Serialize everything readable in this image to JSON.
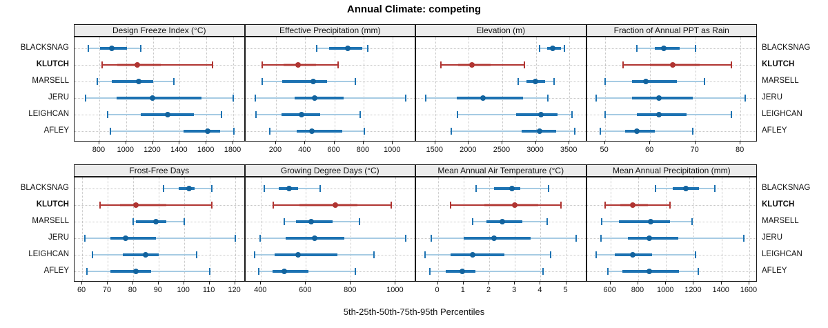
{
  "title": "Annual Climate: competing",
  "caption": "5th-25th-50th-75th-95th Percentiles",
  "sites": [
    "BLACKSNAG",
    "KLUTCH",
    "MARSELL",
    "JERU",
    "LEIGHCAN",
    "AFLEY"
  ],
  "highlight_site": "KLUTCH",
  "colors": {
    "blue_strong": "#1c72b2",
    "blue_light": "#a6cbe3",
    "blue_dot": "#12639e",
    "red_strong": "#b03431",
    "red_light_alpha": "rgba(176,52,47,0.42)",
    "strip_bg": "#ececec",
    "grid": "#c6c6c6",
    "panel_border": "#1a1a1a"
  },
  "percentile_order": [
    "5th",
    "25th",
    "50th",
    "75th",
    "95th"
  ],
  "chart_data": [
    {
      "type": "percentile-interval",
      "title": "Design Freeze Index (°C)",
      "row": 0,
      "col": 0,
      "xlim": [
        615,
        1880
      ],
      "ticks": [
        800,
        1000,
        1200,
        1400,
        1600,
        1800
      ],
      "series": [
        {
          "site": "BLACKSNAG",
          "values": [
            720,
            805,
            895,
            1005,
            1110
          ]
        },
        {
          "site": "KLUTCH",
          "values": [
            820,
            935,
            1085,
            1260,
            1645
          ]
        },
        {
          "site": "MARSELL",
          "values": [
            785,
            895,
            1095,
            1205,
            1355
          ]
        },
        {
          "site": "JERU",
          "values": [
            700,
            930,
            1195,
            1565,
            1800
          ]
        },
        {
          "site": "LEIGHCAN",
          "values": [
            860,
            1110,
            1310,
            1505,
            1715
          ]
        },
        {
          "site": "AFLEY",
          "values": [
            885,
            1430,
            1610,
            1700,
            1805
          ]
        }
      ]
    },
    {
      "type": "percentile-interval",
      "title": "Effective Precipitation (mm)",
      "row": 0,
      "col": 1,
      "xlim": [
        -10,
        1150
      ],
      "ticks": [
        200,
        400,
        600,
        800,
        1000
      ],
      "series": [
        {
          "site": "BLACKSNAG",
          "values": [
            480,
            565,
            690,
            790,
            830
          ]
        },
        {
          "site": "KLUTCH",
          "values": [
            105,
            250,
            350,
            475,
            625
          ]
        },
        {
          "site": "MARSELL",
          "values": [
            105,
            245,
            455,
            550,
            745
          ]
        },
        {
          "site": "JERU",
          "values": [
            60,
            330,
            465,
            665,
            1090
          ]
        },
        {
          "site": "LEIGHCAN",
          "values": [
            65,
            240,
            375,
            505,
            775
          ]
        },
        {
          "site": "AFLEY",
          "values": [
            160,
            340,
            445,
            655,
            805
          ]
        }
      ]
    },
    {
      "type": "percentile-interval",
      "title": "Elevation (m)",
      "row": 0,
      "col": 2,
      "xlim": [
        1215,
        3740
      ],
      "ticks": [
        1500,
        2000,
        2500,
        3000,
        3500
      ],
      "series": [
        {
          "site": "BLACKSNAG",
          "values": [
            3060,
            3170,
            3250,
            3370,
            3430
          ]
        },
        {
          "site": "KLUTCH",
          "values": [
            1590,
            1840,
            2050,
            2330,
            2830
          ]
        },
        {
          "site": "MARSELL",
          "values": [
            2740,
            2860,
            2990,
            3140,
            3270
          ]
        },
        {
          "site": "JERU",
          "values": [
            1360,
            1820,
            2215,
            2810,
            3180
          ]
        },
        {
          "site": "LEIGHCAN",
          "values": [
            1830,
            2710,
            3080,
            3320,
            3540
          ]
        },
        {
          "site": "AFLEY",
          "values": [
            1740,
            2790,
            3060,
            3300,
            3580
          ]
        }
      ]
    },
    {
      "type": "percentile-interval",
      "title": "Fraction of Annual PPT as Rain",
      "row": 0,
      "col": 3,
      "xlim": [
        46,
        83.5
      ],
      "ticks": [
        50,
        60,
        70,
        80
      ],
      "series": [
        {
          "site": "BLACKSNAG",
          "values": [
            57,
            61,
            63,
            66.5,
            70
          ]
        },
        {
          "site": "KLUTCH",
          "values": [
            54,
            60,
            65,
            71,
            78
          ]
        },
        {
          "site": "MARSELL",
          "values": [
            50,
            56,
            59,
            66,
            72
          ]
        },
        {
          "site": "JERU",
          "values": [
            48,
            56,
            62,
            69.5,
            81
          ]
        },
        {
          "site": "LEIGHCAN",
          "values": [
            50,
            57,
            62,
            68,
            78
          ]
        },
        {
          "site": "AFLEY",
          "values": [
            49,
            54.5,
            57,
            61,
            69.5
          ]
        }
      ]
    },
    {
      "type": "percentile-interval",
      "title": "Frost-Free Days",
      "row": 1,
      "col": 0,
      "xlim": [
        57,
        123.5
      ],
      "ticks": [
        60,
        70,
        80,
        90,
        100,
        110,
        120
      ],
      "series": [
        {
          "site": "BLACKSNAG",
          "values": [
            92,
            98,
            102,
            104,
            111
          ]
        },
        {
          "site": "KLUTCH",
          "values": [
            67,
            75,
            81,
            93,
            111
          ]
        },
        {
          "site": "MARSELL",
          "values": [
            80,
            81,
            89,
            93,
            100
          ]
        },
        {
          "site": "JERU",
          "values": [
            61,
            71,
            77,
            89,
            120
          ]
        },
        {
          "site": "LEIGHCAN",
          "values": [
            64,
            76,
            85,
            90,
            105
          ]
        },
        {
          "site": "AFLEY",
          "values": [
            62,
            71,
            81,
            87,
            110
          ]
        }
      ]
    },
    {
      "type": "percentile-interval",
      "title": "Growing Degree Days (°C)",
      "row": 1,
      "col": 1,
      "xlim": [
        330,
        1085
      ],
      "ticks": [
        400,
        600,
        800,
        1000
      ],
      "series": [
        {
          "site": "BLACKSNAG",
          "values": [
            415,
            480,
            525,
            565,
            665
          ]
        },
        {
          "site": "KLUTCH",
          "values": [
            455,
            570,
            730,
            830,
            980
          ]
        },
        {
          "site": "MARSELL",
          "values": [
            505,
            555,
            625,
            720,
            840
          ]
        },
        {
          "site": "JERU",
          "values": [
            395,
            510,
            640,
            770,
            1045
          ]
        },
        {
          "site": "LEIGHCAN",
          "values": [
            370,
            460,
            565,
            740,
            905
          ]
        },
        {
          "site": "AFLEY",
          "values": [
            390,
            450,
            505,
            610,
            820
          ]
        }
      ]
    },
    {
      "type": "percentile-interval",
      "title": "Mean Annual Air Temperature (°C)",
      "row": 1,
      "col": 2,
      "xlim": [
        -0.85,
        5.75
      ],
      "ticks": [
        0,
        1,
        2,
        3,
        4,
        5
      ],
      "series": [
        {
          "site": "BLACKSNAG",
          "values": [
            1.5,
            2.2,
            2.9,
            3.2,
            4.3
          ]
        },
        {
          "site": "KLUTCH",
          "values": [
            0.5,
            1.8,
            3.0,
            3.9,
            4.8
          ]
        },
        {
          "site": "MARSELL",
          "values": [
            1.35,
            1.9,
            2.5,
            3.3,
            4.25
          ]
        },
        {
          "site": "JERU",
          "values": [
            -0.25,
            1.0,
            2.2,
            3.6,
            5.4
          ]
        },
        {
          "site": "LEIGHCAN",
          "values": [
            -0.5,
            0.5,
            1.35,
            2.6,
            4.4
          ]
        },
        {
          "site": "AFLEY",
          "values": [
            -0.3,
            0.3,
            0.95,
            1.45,
            4.1
          ]
        }
      ]
    },
    {
      "type": "percentile-interval",
      "title": "Mean Annual Precipitation (mm)",
      "row": 1,
      "col": 3,
      "xlim": [
        430,
        1650
      ],
      "ticks": [
        600,
        800,
        1000,
        1200,
        1400,
        1600
      ],
      "series": [
        {
          "site": "BLACKSNAG",
          "values": [
            925,
            1050,
            1145,
            1240,
            1350
          ]
        },
        {
          "site": "KLUTCH",
          "values": [
            560,
            670,
            760,
            870,
            1030
          ]
        },
        {
          "site": "MARSELL",
          "values": [
            535,
            660,
            890,
            1030,
            1190
          ]
        },
        {
          "site": "JERU",
          "values": [
            530,
            725,
            880,
            1090,
            1560
          ]
        },
        {
          "site": "LEIGHCAN",
          "values": [
            495,
            630,
            760,
            900,
            1215
          ]
        },
        {
          "site": "AFLEY",
          "values": [
            580,
            685,
            880,
            1095,
            1235
          ]
        }
      ]
    }
  ]
}
